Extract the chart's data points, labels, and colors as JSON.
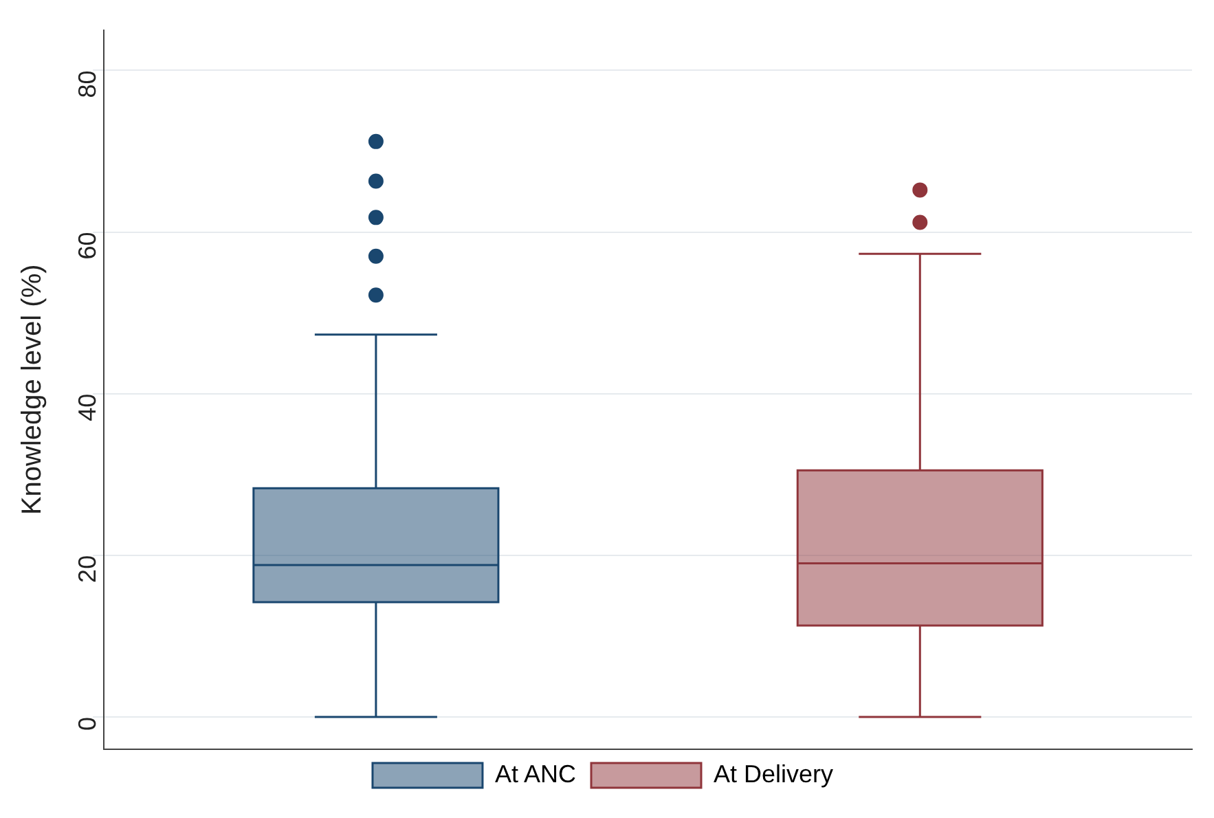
{
  "chart_data": {
    "type": "box",
    "ylabel": "Knowledge level (%)",
    "categories": [
      null,
      null
    ],
    "series": [
      {
        "name": "At ANC",
        "color": "#1a476f",
        "boxes": [
          {
            "low": 0,
            "q1": 14.2,
            "median": 18.8,
            "q3": 28.3,
            "high": 47.3,
            "outliers": [
              52.2,
              57,
              61.8,
              66.3,
              71.2
            ]
          },
          null
        ]
      },
      {
        "name": "At Delivery",
        "color": "#90353b",
        "boxes": [
          null,
          {
            "low": 0,
            "q1": 11.3,
            "median": 19,
            "q3": 30.5,
            "high": 57.3,
            "outliers": [
              61.2,
              65.2
            ]
          }
        ]
      }
    ],
    "ylim": [
      -4,
      85
    ],
    "yticks": [
      0,
      20,
      40,
      60,
      80
    ],
    "grid": "y",
    "legend": "bottom"
  }
}
